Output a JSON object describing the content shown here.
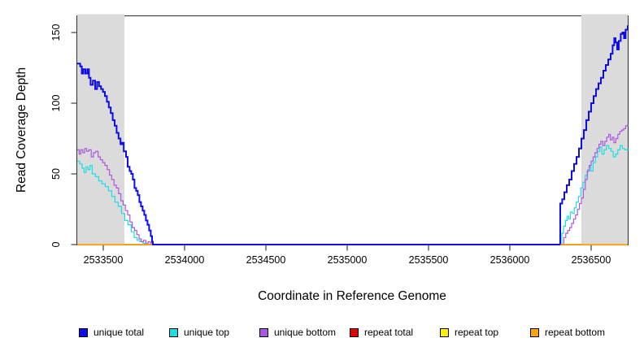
{
  "figure": {
    "background": "#ffffff",
    "box_color": "#2e2e2e",
    "tick_color": "#404040",
    "text_color": "#000000",
    "shaded_region_color": "#dbdbdb"
  },
  "chart_data": {
    "type": "line",
    "title": "",
    "xlabel": "Coordinate in Reference Genome",
    "ylabel": "Read Coverage Depth",
    "xlim": [
      2533340,
      2536725
    ],
    "ylim": [
      0,
      161.5
    ],
    "x_ticks": [
      2533500,
      2534000,
      2534500,
      2535000,
      2535500,
      2536000,
      2536500
    ],
    "y_ticks": [
      0,
      50,
      100,
      150
    ],
    "grid": false,
    "legend_position": "bottom",
    "shaded_regions": [
      {
        "label": "repeat-region-left",
        "x0": 2533340,
        "x1": 2533630
      },
      {
        "label": "repeat-region-right",
        "x0": 2536440,
        "x1": 2536725
      }
    ],
    "series": [
      {
        "name": "unique total",
        "color": "#0d0de8",
        "lwd": 2,
        "points": [
          [
            2533340,
            128
          ],
          [
            2533358,
            126
          ],
          [
            2533368,
            121
          ],
          [
            2533378,
            124
          ],
          [
            2533390,
            121
          ],
          [
            2533402,
            124
          ],
          [
            2533412,
            118
          ],
          [
            2533422,
            113
          ],
          [
            2533436,
            116
          ],
          [
            2533450,
            110
          ],
          [
            2533462,
            115
          ],
          [
            2533474,
            112
          ],
          [
            2533486,
            110
          ],
          [
            2533498,
            108
          ],
          [
            2533510,
            105
          ],
          [
            2533522,
            101
          ],
          [
            2533534,
            97
          ],
          [
            2533546,
            93
          ],
          [
            2533558,
            88
          ],
          [
            2533570,
            84
          ],
          [
            2533582,
            79
          ],
          [
            2533594,
            75
          ],
          [
            2533606,
            71
          ],
          [
            2533616,
            72
          ],
          [
            2533626,
            66
          ],
          [
            2533640,
            62
          ],
          [
            2533650,
            55
          ],
          [
            2533662,
            52
          ],
          [
            2533672,
            50
          ],
          [
            2533682,
            46
          ],
          [
            2533692,
            40
          ],
          [
            2533702,
            38
          ],
          [
            2533712,
            35
          ],
          [
            2533722,
            30
          ],
          [
            2533732,
            27
          ],
          [
            2533742,
            24
          ],
          [
            2533752,
            21
          ],
          [
            2533762,
            17
          ],
          [
            2533772,
            14
          ],
          [
            2533782,
            10
          ],
          [
            2533792,
            6
          ],
          [
            2533800,
            2
          ],
          [
            2533805,
            0
          ],
          [
            2536308,
            0
          ],
          [
            2536310,
            29
          ],
          [
            2536322,
            32
          ],
          [
            2536335,
            37
          ],
          [
            2536350,
            42
          ],
          [
            2536365,
            46
          ],
          [
            2536380,
            52
          ],
          [
            2536395,
            57
          ],
          [
            2536410,
            62
          ],
          [
            2536425,
            68
          ],
          [
            2536440,
            75
          ],
          [
            2536455,
            81
          ],
          [
            2536470,
            88
          ],
          [
            2536485,
            94
          ],
          [
            2536500,
            100
          ],
          [
            2536515,
            105
          ],
          [
            2536530,
            110
          ],
          [
            2536545,
            114
          ],
          [
            2536560,
            118
          ],
          [
            2536575,
            123
          ],
          [
            2536590,
            127
          ],
          [
            2536605,
            131
          ],
          [
            2536620,
            135
          ],
          [
            2536632,
            141
          ],
          [
            2536642,
            146
          ],
          [
            2536650,
            143
          ],
          [
            2536660,
            138
          ],
          [
            2536670,
            144
          ],
          [
            2536682,
            149
          ],
          [
            2536692,
            150
          ],
          [
            2536702,
            146
          ],
          [
            2536712,
            152
          ],
          [
            2536725,
            155
          ]
        ]
      },
      {
        "name": "unique top",
        "color": "#1fdde6",
        "lwd": 1.2,
        "points": [
          [
            2533340,
            59
          ],
          [
            2533355,
            57
          ],
          [
            2533370,
            54
          ],
          [
            2533382,
            51
          ],
          [
            2533394,
            55
          ],
          [
            2533406,
            53
          ],
          [
            2533418,
            56
          ],
          [
            2533432,
            50
          ],
          [
            2533452,
            48
          ],
          [
            2533472,
            45
          ],
          [
            2533492,
            43
          ],
          [
            2533512,
            41
          ],
          [
            2533532,
            38
          ],
          [
            2533552,
            34
          ],
          [
            2533572,
            30
          ],
          [
            2533592,
            27
          ],
          [
            2533612,
            22
          ],
          [
            2533632,
            17
          ],
          [
            2533652,
            14
          ],
          [
            2533672,
            9
          ],
          [
            2533690,
            5
          ],
          [
            2533708,
            3
          ],
          [
            2533725,
            2
          ],
          [
            2533745,
            1
          ],
          [
            2533760,
            0
          ],
          [
            2536312,
            0
          ],
          [
            2536320,
            8
          ],
          [
            2536330,
            13
          ],
          [
            2536342,
            17
          ],
          [
            2536352,
            20
          ],
          [
            2536362,
            18
          ],
          [
            2536372,
            23
          ],
          [
            2536384,
            22
          ],
          [
            2536396,
            26
          ],
          [
            2536408,
            30
          ],
          [
            2536422,
            34
          ],
          [
            2536436,
            40
          ],
          [
            2536450,
            44
          ],
          [
            2536464,
            49
          ],
          [
            2536478,
            53
          ],
          [
            2536488,
            55
          ],
          [
            2536498,
            52
          ],
          [
            2536512,
            58
          ],
          [
            2536526,
            62
          ],
          [
            2536540,
            66
          ],
          [
            2536554,
            69
          ],
          [
            2536566,
            64
          ],
          [
            2536580,
            67
          ],
          [
            2536594,
            70
          ],
          [
            2536608,
            68
          ],
          [
            2536622,
            66
          ],
          [
            2536636,
            62
          ],
          [
            2536650,
            64
          ],
          [
            2536664,
            67
          ],
          [
            2536678,
            70
          ],
          [
            2536692,
            68
          ],
          [
            2536706,
            67
          ],
          [
            2536725,
            68
          ]
        ]
      },
      {
        "name": "unique bottom",
        "color": "#ab57e3",
        "lwd": 1.2,
        "points": [
          [
            2533340,
            67
          ],
          [
            2533352,
            64
          ],
          [
            2533362,
            67
          ],
          [
            2533374,
            65
          ],
          [
            2533386,
            68
          ],
          [
            2533398,
            66
          ],
          [
            2533412,
            67
          ],
          [
            2533426,
            62
          ],
          [
            2533440,
            65
          ],
          [
            2533454,
            66
          ],
          [
            2533468,
            62
          ],
          [
            2533482,
            60
          ],
          [
            2533496,
            58
          ],
          [
            2533510,
            56
          ],
          [
            2533524,
            53
          ],
          [
            2533538,
            49
          ],
          [
            2533552,
            46
          ],
          [
            2533566,
            42
          ],
          [
            2533580,
            40
          ],
          [
            2533594,
            36
          ],
          [
            2533608,
            31
          ],
          [
            2533622,
            28
          ],
          [
            2533636,
            24
          ],
          [
            2533650,
            21
          ],
          [
            2533664,
            16
          ],
          [
            2533678,
            12
          ],
          [
            2533692,
            10
          ],
          [
            2533706,
            7
          ],
          [
            2533720,
            4
          ],
          [
            2533734,
            2
          ],
          [
            2533748,
            3
          ],
          [
            2533762,
            1
          ],
          [
            2533776,
            2
          ],
          [
            2533790,
            1
          ],
          [
            2533802,
            0
          ],
          [
            2536322,
            0
          ],
          [
            2536332,
            5
          ],
          [
            2536344,
            8
          ],
          [
            2536356,
            10
          ],
          [
            2536368,
            12
          ],
          [
            2536380,
            15
          ],
          [
            2536392,
            18
          ],
          [
            2536404,
            21
          ],
          [
            2536416,
            25
          ],
          [
            2536428,
            29
          ],
          [
            2536440,
            33
          ],
          [
            2536452,
            39
          ],
          [
            2536464,
            46
          ],
          [
            2536476,
            52
          ],
          [
            2536488,
            56
          ],
          [
            2536500,
            59
          ],
          [
            2536512,
            62
          ],
          [
            2536524,
            65
          ],
          [
            2536536,
            68
          ],
          [
            2536548,
            71
          ],
          [
            2536560,
            73
          ],
          [
            2536572,
            70
          ],
          [
            2536584,
            73
          ],
          [
            2536596,
            76
          ],
          [
            2536608,
            78
          ],
          [
            2536618,
            74
          ],
          [
            2536630,
            76
          ],
          [
            2536640,
            72
          ],
          [
            2536652,
            75
          ],
          [
            2536664,
            78
          ],
          [
            2536676,
            80
          ],
          [
            2536688,
            81
          ],
          [
            2536700,
            82
          ],
          [
            2536712,
            84
          ],
          [
            2536725,
            85
          ]
        ]
      },
      {
        "name": "repeat total",
        "color": "#e60000",
        "lwd": 1.2,
        "points": [
          [
            2533340,
            0
          ],
          [
            2533798,
            0
          ],
          null,
          [
            2536312,
            0
          ],
          [
            2536725,
            0
          ]
        ]
      },
      {
        "name": "repeat top",
        "color": "#ffee00",
        "lwd": 1.2,
        "points": [
          [
            2533340,
            0
          ],
          [
            2533798,
            0
          ],
          null,
          [
            2536312,
            0
          ],
          [
            2536725,
            0
          ]
        ]
      },
      {
        "name": "repeat bottom",
        "color": "#ffa500",
        "lwd": 1.5,
        "points": [
          [
            2533340,
            0
          ],
          [
            2533798,
            0
          ],
          null,
          [
            2536312,
            0
          ],
          [
            2536725,
            0
          ]
        ]
      }
    ]
  }
}
